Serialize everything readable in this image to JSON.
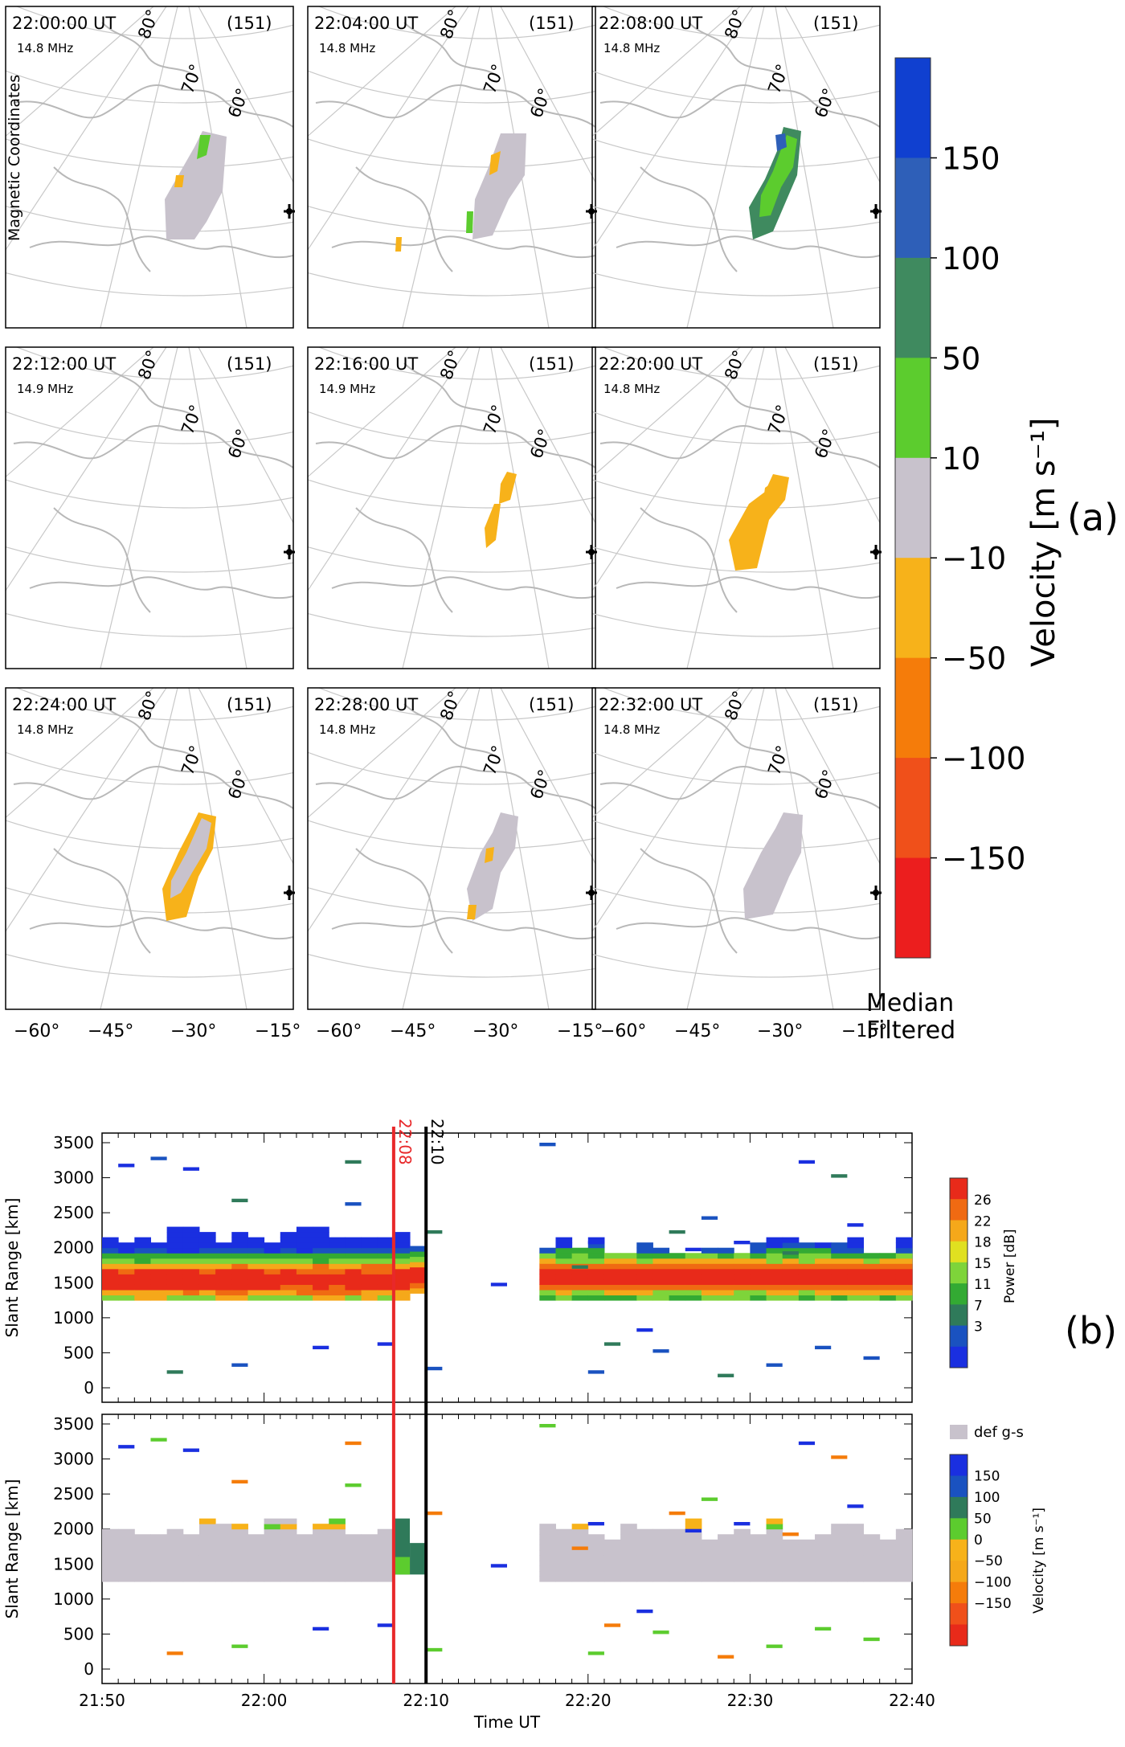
{
  "panel_a": {
    "side_label": "Magnetic Coordinates",
    "radar_id": "(151)",
    "lat_labels": [
      "80°",
      "70°",
      "60°"
    ],
    "lon_labels": [
      "−60°",
      "−45°",
      "−30°",
      "−15°"
    ],
    "panels": [
      {
        "time": "22:00:00 UT",
        "freq": "14.8 MHz"
      },
      {
        "time": "22:04:00 UT",
        "freq": "14.8 MHz"
      },
      {
        "time": "22:08:00 UT",
        "freq": "14.8 MHz"
      },
      {
        "time": "22:12:00 UT",
        "freq": "14.9 MHz"
      },
      {
        "time": "22:16:00 UT",
        "freq": "14.9 MHz"
      },
      {
        "time": "22:20:00 UT",
        "freq": "14.8 MHz"
      },
      {
        "time": "22:24:00 UT",
        "freq": "14.8 MHz"
      },
      {
        "time": "22:28:00 UT",
        "freq": "14.8 MHz"
      },
      {
        "time": "22:32:00 UT",
        "freq": "14.8 MHz"
      }
    ],
    "colorbar": {
      "title": "Velocity [m s⁻¹]",
      "ticks": [
        "150",
        "100",
        "50",
        "10",
        "−10",
        "−50",
        "−100",
        "−150"
      ],
      "colors": [
        "#1040d0",
        "#2e5fb8",
        "#3f8a5f",
        "#5ccc2e",
        "#c8c2cc",
        "#f7b21a",
        "#f57c0a",
        "#f0501a",
        "#ec1e1e"
      ],
      "note_line1": "Median",
      "note_line2": "Filtered"
    },
    "label": "(a)"
  },
  "panel_b": {
    "label": "(b)",
    "markers": [
      {
        "label": "22:08",
        "color": "#e8282a"
      },
      {
        "label": "22:10",
        "color": "#000000"
      }
    ],
    "ylabel": "Slant Range [km]",
    "xlabel": "Time UT",
    "y_ticks": [
      "0",
      "500",
      "1000",
      "1500",
      "2000",
      "2500",
      "3000",
      "3500"
    ],
    "x_ticks": [
      "21:50",
      "22:00",
      "22:10",
      "22:20",
      "22:30",
      "22:40"
    ],
    "power_bar": {
      "title": "Power [dB]",
      "ticks": [
        "26",
        "22",
        "18",
        "15",
        "11",
        "7",
        "3"
      ],
      "colors": [
        "#1a2fe0",
        "#1a52c0",
        "#2f7a5a",
        "#33aa33",
        "#7ed43a",
        "#e0e020",
        "#f5a81a",
        "#f06a12",
        "#e82a1a"
      ]
    },
    "velocity_bar": {
      "gs_label": "def g-s",
      "title": "Velocity [m s⁻¹]",
      "ticks": [
        "150",
        "100",
        "50",
        "0",
        "−50",
        "−100",
        "−150"
      ],
      "colors": [
        "#1a2fe0",
        "#1a52c0",
        "#2f7a5a",
        "#5ccc2e",
        "#f7b21a",
        "#f5a81a",
        "#f57c0a",
        "#f0501a",
        "#e82a1a"
      ]
    }
  },
  "chart_data": [
    {
      "type": "heatmap",
      "title": "",
      "xlabel": "Time UT",
      "ylabel": "Slant Range [km]",
      "xlim": [
        "21:50",
        "22:40"
      ],
      "ylim": [
        0,
        3500
      ],
      "series": [
        {
          "name": "Power [dB]",
          "description_values": {
            "band_21:50-22:09": {
              "range_km": [
                1300,
                2200
              ],
              "peak_range_km": 1500,
              "peak_power_db": 26
            },
            "band_22:17-22:40": {
              "range_km": [
                1300,
                2100
              ],
              "peak_range_km": 1550,
              "peak_power_db": 26
            }
          }
        }
      ],
      "vertical_markers": [
        "22:08",
        "22:10"
      ],
      "colorbar_ticks": [
        3,
        7,
        11,
        15,
        18,
        22,
        26
      ]
    },
    {
      "type": "heatmap",
      "title": "",
      "xlabel": "Time UT",
      "ylabel": "Slant Range [km]",
      "xlim": [
        "21:50",
        "22:40"
      ],
      "ylim": [
        0,
        3500
      ],
      "series": [
        {
          "name": "Velocity [m s⁻¹]",
          "description_values": {
            "ground_scatter_band_21:50-22:08": {
              "range_km": [
                1300,
                2000
              ]
            },
            "ground_scatter_band_22:17-22:40": {
              "range_km": [
                1300,
                2000
              ]
            },
            "positive_velocity_22:08-22:10": {
              "range_km": [
                1400,
                2150
              ],
              "velocity": 100
            }
          }
        }
      ],
      "vertical_markers": [
        "22:08",
        "22:10"
      ],
      "colorbar_ticks": [
        -150,
        -100,
        -50,
        0,
        50,
        100,
        150
      ]
    }
  ]
}
